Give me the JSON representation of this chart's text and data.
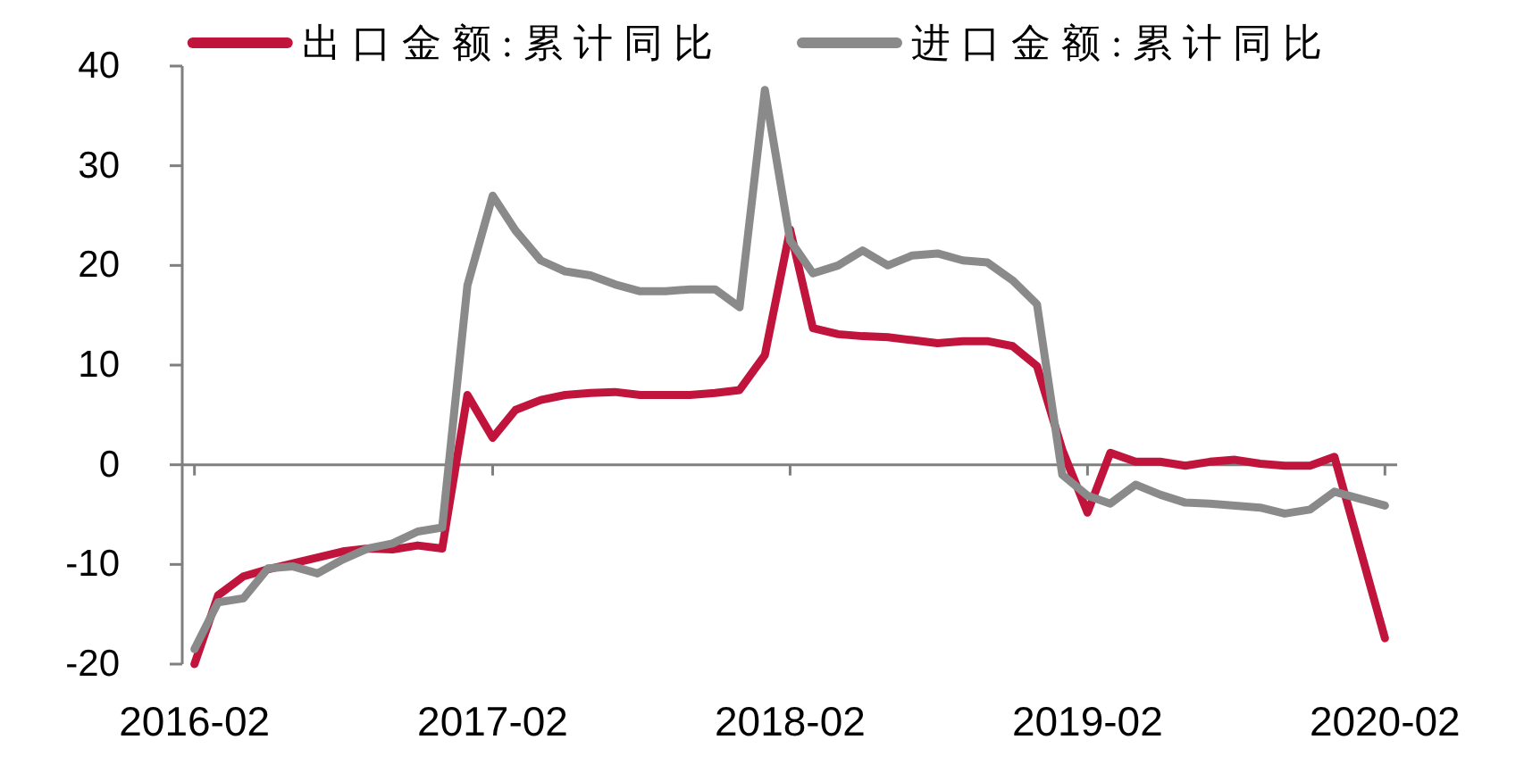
{
  "chart_data": {
    "type": "line",
    "legend": "top",
    "x": [
      "2016-02",
      "2016-03",
      "2016-04",
      "2016-05",
      "2016-06",
      "2016-07",
      "2016-08",
      "2016-09",
      "2016-10",
      "2016-11",
      "2016-12",
      "2017-01",
      "2017-02",
      "2017-03",
      "2017-04",
      "2017-05",
      "2017-06",
      "2017-07",
      "2017-08",
      "2017-09",
      "2017-10",
      "2017-11",
      "2017-12",
      "2018-01",
      "2018-02",
      "2018-03",
      "2018-04",
      "2018-05",
      "2018-06",
      "2018-07",
      "2018-08",
      "2018-09",
      "2018-10",
      "2018-11",
      "2018-12",
      "2019-01",
      "2019-02",
      "2019-03",
      "2019-04",
      "2019-05",
      "2019-06",
      "2019-07",
      "2019-08",
      "2019-09",
      "2019-10",
      "2019-11",
      "2019-12",
      "2020-02"
    ],
    "xlim": [
      "2016-01-17",
      "2020-02-16"
    ],
    "xticks": [
      "2016-02",
      "2017-02",
      "2018-02",
      "2019-02",
      "2020-02"
    ],
    "ylim": [
      -20,
      40
    ],
    "yticks": [
      -20,
      -10,
      0,
      10,
      20,
      30,
      40
    ],
    "series": [
      {
        "name": "出口金额:累计同比",
        "color": "#c0143c",
        "values": [
          -20,
          -13.1,
          -11.2,
          -10.5,
          -9.9,
          -9.3,
          -8.7,
          -8.4,
          -8.5,
          -8.1,
          -8.4,
          7,
          2.7,
          5.5,
          6.5,
          7,
          7.2,
          7.3,
          7,
          7,
          7,
          7.2,
          7.5,
          11,
          23.6,
          13.7,
          13.1,
          12.9,
          12.8,
          12.5,
          12.2,
          12.4,
          12.4,
          11.9,
          9.9,
          1.5,
          -4.8,
          1.2,
          0.3,
          0.3,
          -0.1,
          0.3,
          0.5,
          0.1,
          -0.1,
          -0.1,
          0.8,
          -17.4
        ]
      },
      {
        "name": "进口金额:累计同比",
        "color": "#8a8a8a",
        "values": [
          -18.5,
          -13.8,
          -13.4,
          -10.4,
          -10.2,
          -10.9,
          -9.5,
          -8.4,
          -7.9,
          -6.7,
          -6.3,
          18,
          27,
          23.5,
          20.5,
          19.4,
          19,
          18.1,
          17.4,
          17.4,
          17.6,
          17.6,
          15.8,
          37.6,
          22.5,
          19.2,
          20,
          21.5,
          20,
          21,
          21.2,
          20.5,
          20.3,
          18.5,
          16.1,
          -1,
          -3.1,
          -3.9,
          -2,
          -3,
          -3.8,
          -3.9,
          -4.1,
          -4.3,
          -4.9,
          -4.5,
          -2.7,
          -4.1
        ]
      }
    ]
  }
}
